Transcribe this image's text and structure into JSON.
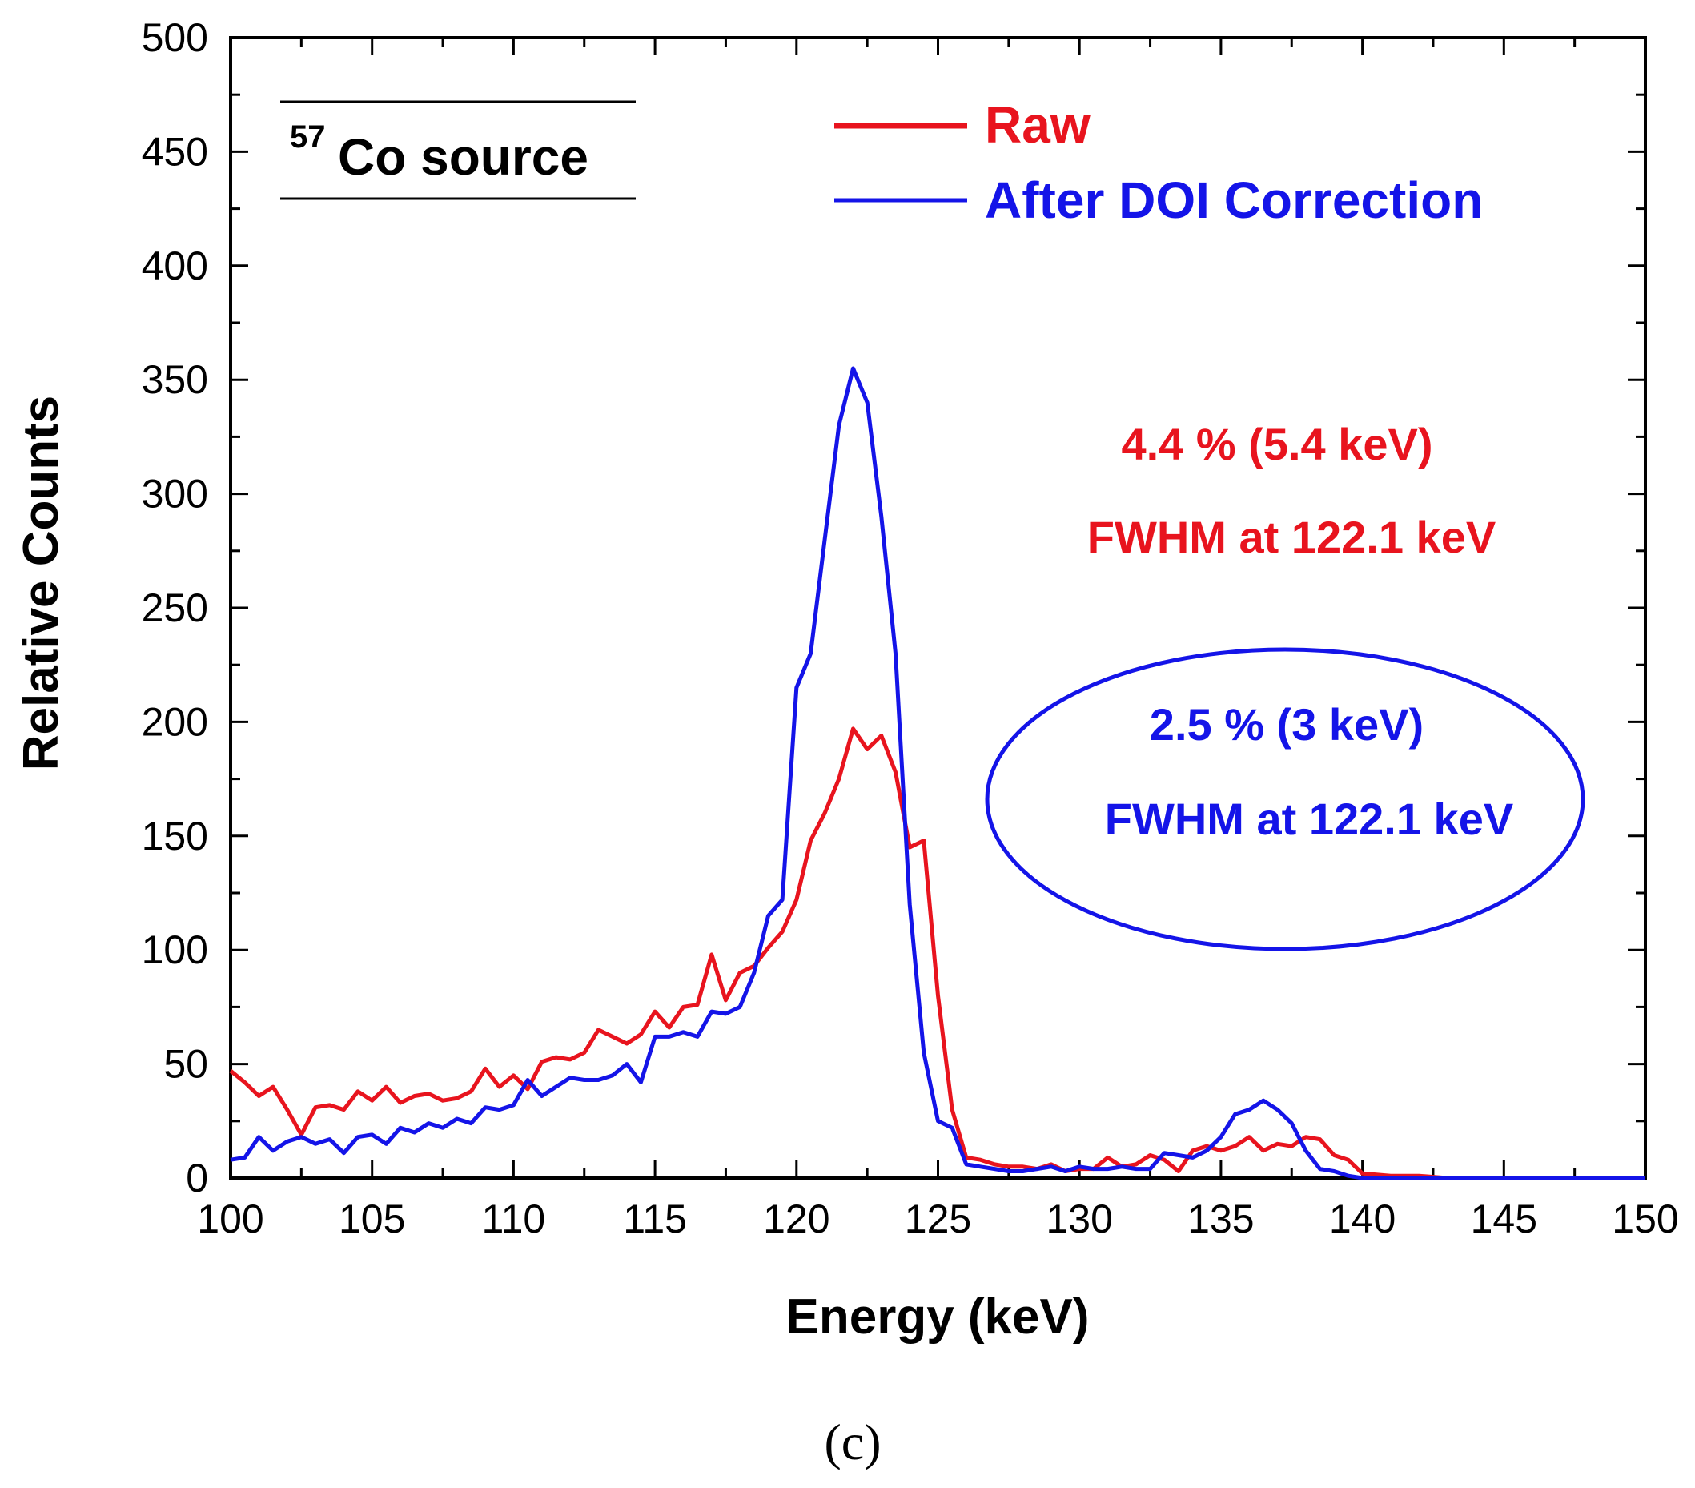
{
  "chart_data": {
    "type": "line",
    "xlabel": "Energy (keV)",
    "ylabel": "Relative Counts",
    "xlim": [
      100,
      150
    ],
    "ylim": [
      0,
      500
    ],
    "xticks": [
      "100",
      "105",
      "110",
      "115",
      "120",
      "125",
      "130",
      "135",
      "140",
      "145",
      "150"
    ],
    "yticks": [
      "0",
      "50",
      "100",
      "150",
      "200",
      "250",
      "300",
      "350",
      "400",
      "450",
      "500"
    ],
    "source_label": {
      "sup": "57",
      "text": "Co source"
    },
    "legend": {
      "position": "top-right",
      "entries": [
        "Raw",
        "After DOI Correction"
      ]
    },
    "annotations": {
      "raw_line1": "4.4 % (5.4 keV)",
      "raw_line2": "FWHM at 122.1 keV",
      "doi_line1": "2.5 % (3 keV)",
      "doi_line2": "FWHM at 122.1 keV"
    },
    "panel_label": "(c)",
    "colors": {
      "raw": "#e8141e",
      "doi": "#1414e8"
    },
    "series": [
      {
        "name": "Raw",
        "color": "#e8141e",
        "x": [
          100,
          100.5,
          101,
          101.5,
          102,
          102.5,
          103,
          103.5,
          104,
          104.5,
          105,
          105.5,
          106,
          106.5,
          107,
          107.5,
          108,
          108.5,
          109,
          109.5,
          110,
          110.5,
          111,
          111.5,
          112,
          112.5,
          113,
          113.5,
          114,
          114.5,
          115,
          115.5,
          116,
          116.5,
          117,
          117.5,
          118,
          118.5,
          119,
          119.5,
          120,
          120.5,
          121,
          121.5,
          122,
          122.5,
          123,
          123.5,
          124,
          124.5,
          125,
          125.5,
          126,
          126.5,
          127,
          127.5,
          128,
          128.5,
          129,
          129.5,
          130,
          130.5,
          131,
          131.5,
          132,
          132.5,
          133,
          133.5,
          134,
          134.5,
          135,
          135.5,
          136,
          136.5,
          137,
          137.5,
          138,
          138.5,
          139,
          139.5,
          140,
          141,
          142,
          143,
          145,
          150
        ],
        "values": [
          47,
          42,
          36,
          40,
          30,
          19,
          31,
          32,
          30,
          38,
          34,
          40,
          33,
          36,
          37,
          34,
          35,
          38,
          48,
          40,
          45,
          39,
          51,
          53,
          52,
          55,
          65,
          62,
          59,
          63,
          73,
          66,
          75,
          76,
          98,
          78,
          90,
          93,
          101,
          108,
          122,
          148,
          160,
          175,
          197,
          188,
          194,
          178,
          145,
          148,
          80,
          30,
          9,
          8,
          6,
          5,
          5,
          4,
          6,
          3,
          4,
          4,
          9,
          5,
          6,
          10,
          8,
          3,
          12,
          14,
          12,
          14,
          18,
          12,
          15,
          14,
          18,
          17,
          10,
          8,
          2,
          1,
          1,
          0,
          0,
          0
        ]
      },
      {
        "name": "After DOI Correction",
        "color": "#1414e8",
        "x": [
          100,
          100.5,
          101,
          101.5,
          102,
          102.5,
          103,
          103.5,
          104,
          104.5,
          105,
          105.5,
          106,
          106.5,
          107,
          107.5,
          108,
          108.5,
          109,
          109.5,
          110,
          110.5,
          111,
          111.5,
          112,
          112.5,
          113,
          113.5,
          114,
          114.5,
          115,
          115.5,
          116,
          116.5,
          117,
          117.5,
          118,
          118.5,
          119,
          119.5,
          120,
          120.5,
          121,
          121.5,
          122,
          122.5,
          123,
          123.5,
          124,
          124.5,
          125,
          125.5,
          126,
          126.5,
          127,
          127.5,
          128,
          128.5,
          129,
          129.5,
          130,
          130.5,
          131,
          131.5,
          132,
          132.5,
          133,
          133.5,
          134,
          134.5,
          135,
          135.5,
          136,
          136.5,
          137,
          137.5,
          138,
          138.5,
          139,
          139.5,
          140,
          141,
          142,
          145,
          150
        ],
        "values": [
          8,
          9,
          18,
          12,
          16,
          18,
          15,
          17,
          11,
          18,
          19,
          15,
          22,
          20,
          24,
          22,
          26,
          24,
          31,
          30,
          32,
          43,
          36,
          40,
          44,
          43,
          43,
          45,
          50,
          42,
          62,
          62,
          64,
          62,
          73,
          72,
          75,
          90,
          115,
          122,
          215,
          230,
          280,
          330,
          355,
          340,
          290,
          230,
          120,
          55,
          25,
          22,
          6,
          5,
          4,
          3,
          3,
          4,
          5,
          3,
          5,
          4,
          4,
          5,
          4,
          4,
          11,
          10,
          9,
          12,
          18,
          28,
          30,
          34,
          30,
          24,
          12,
          4,
          3,
          1,
          0,
          0,
          0,
          0,
          0
        ]
      }
    ]
  }
}
